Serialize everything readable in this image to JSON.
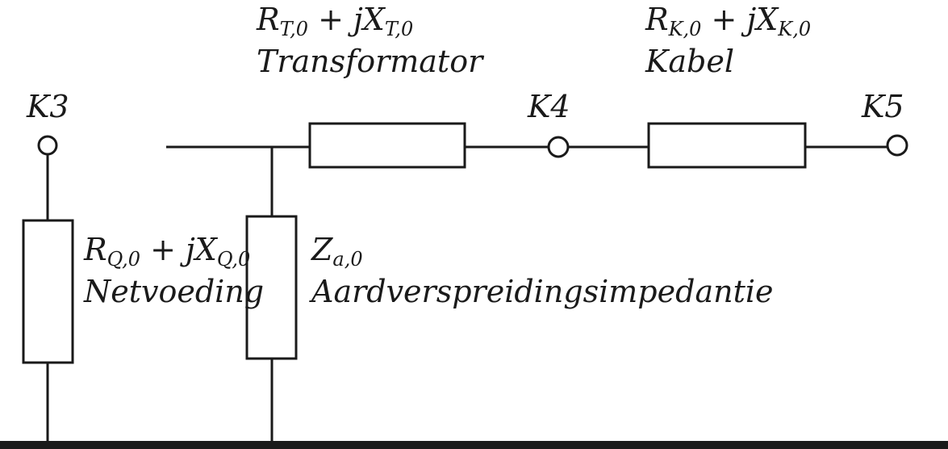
{
  "nodes": {
    "k3": "K3",
    "k4": "K4",
    "k5": "K5"
  },
  "transformer": {
    "r_base": "R",
    "r_sub": "T,0",
    "op": " + j",
    "x_base": "X",
    "x_sub": "T,0",
    "name": "Transformator"
  },
  "cable": {
    "r_base": "R",
    "r_sub": "K,0",
    "op": " + j",
    "x_base": "X",
    "x_sub": "K,0",
    "name": "Kabel"
  },
  "source": {
    "r_base": "R",
    "r_sub": "Q,0",
    "op": " + j",
    "x_base": "X",
    "x_sub": "Q,0",
    "name": "Netvoeding"
  },
  "earth": {
    "z_base": "Z",
    "z_sub": "a,0",
    "name": "Aardverspreidingsimpedantie"
  }
}
